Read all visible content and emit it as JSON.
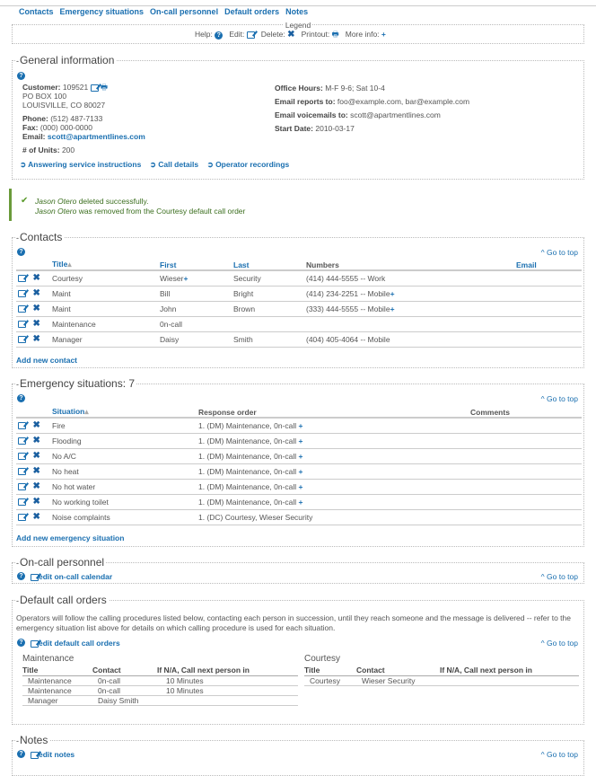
{
  "nav": [
    "Contacts",
    "Emergency situations",
    "On-call personnel",
    "Default orders",
    "Notes"
  ],
  "legend": {
    "title": "Legend",
    "help": "Help:",
    "edit": "Edit:",
    "delete": "Delete:",
    "printout": "Printout:",
    "more": "More info:"
  },
  "general": {
    "title": "General information",
    "customer_label": "Customer:",
    "customer": "109521",
    "addr1": "PO BOX 100",
    "addr2": "LOUISVILLE, CO 80027",
    "phone_label": "Phone:",
    "phone": "(512) 487-7133",
    "fax_label": "Fax:",
    "fax": "(000) 000-0000",
    "email_label": "Email:",
    "email": "scott@apartmentlines.com",
    "units_label": "# of Units:",
    "units": "200",
    "office_label": "Office Hours:",
    "office": "M-F 9-6; Sat 10-4",
    "reports_label": "Email reports to:",
    "reports": "foo@example.com, bar@example.com",
    "voicemail_label": "Email voicemails to:",
    "voicemail": "scott@apartmentlines.com",
    "start_label": "Start Date:",
    "start": "2010-03-17",
    "links": [
      "Answering service instructions",
      "Call details",
      "Operator recordings"
    ]
  },
  "message": {
    "name": "Jason Otero",
    "line1": "deleted successfully.",
    "line2": "was removed from the Courtesy default call order",
    "color": "#3b6e1e"
  },
  "goto": "Go to top",
  "contacts": {
    "title": "Contacts",
    "headers": [
      "Title",
      "First",
      "Last",
      "Numbers",
      "Email"
    ],
    "rows": [
      [
        "Courtesy",
        "Wieser",
        "Security",
        "(414) 444-5555 -- Work",
        ""
      ],
      [
        "Maint",
        "Bill",
        "Bright",
        "(414) 234-2251 -- Mobile",
        ""
      ],
      [
        "Maint",
        "John",
        "Brown",
        "(333) 444-5555 -- Mobile",
        ""
      ],
      [
        "Maintenance",
        "0n-call",
        "",
        "",
        ""
      ],
      [
        "Manager",
        "Daisy",
        "Smith",
        "(404) 405-4064 -- Mobile",
        ""
      ]
    ],
    "add": "Add new contact"
  },
  "emergency": {
    "title": "Emergency situations: 7",
    "headers": [
      "Situation",
      "Response order",
      "Comments"
    ],
    "rows": [
      [
        "Fire",
        "1. (DM) Maintenance, 0n-call"
      ],
      [
        "Flooding",
        "1. (DM) Maintenance, 0n-call"
      ],
      [
        "No A/C",
        "1. (DM) Maintenance, 0n-call"
      ],
      [
        "No heat",
        "1. (DM) Maintenance, 0n-call"
      ],
      [
        "No hot water",
        "1. (DM) Maintenance, 0n-call"
      ],
      [
        "No working toilet",
        "1. (DM) Maintenance, 0n-call"
      ],
      [
        "Noise complaints",
        "1. (DC) Courtesy, Wieser Security"
      ]
    ],
    "add": "Add new emergency situation"
  },
  "oncall": {
    "title": "On-call personnel",
    "edit": "edit on-call calendar"
  },
  "default": {
    "title": "Default call orders",
    "desc": "Operators will follow the calling procedures listed below, contacting each person in succession, until they reach someone and the message is delivered -- refer to the emergency situation list above for details on which calling procedure is used for each situation.",
    "edit": "edit default call orders",
    "headers": [
      "Title",
      "Contact",
      "If N/A, Call next person in"
    ],
    "maintenance": {
      "name": "Maintenance",
      "rows": [
        [
          "Maintenance",
          "0n-call",
          "10 Minutes"
        ],
        [
          "Maintenance",
          "0n-call",
          "10 Minutes"
        ],
        [
          "Manager",
          "Daisy Smith",
          ""
        ]
      ]
    },
    "courtesy": {
      "name": "Courtesy",
      "rows": [
        [
          "Courtesy",
          "Wieser Security",
          ""
        ]
      ]
    }
  },
  "notes": {
    "title": "Notes",
    "edit": "edit notes"
  }
}
